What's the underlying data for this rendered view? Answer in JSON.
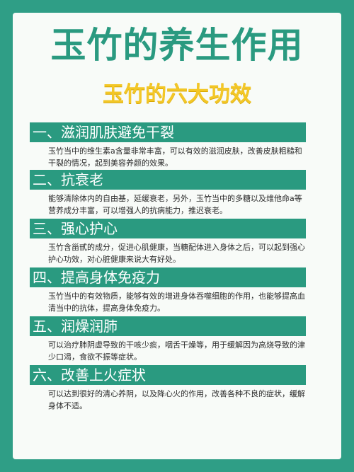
{
  "title": "玉竹的养生作用",
  "subtitle": "玉竹的六大功效",
  "sections": [
    {
      "heading": "一、滋润肌肤避免干裂",
      "text": "玉竹当中的维生素a含量非常丰富，可以有效的滋润皮肤，改善皮肤粗糙和干裂的情况，起到美容养颜的效果。"
    },
    {
      "heading": "二、抗衰老",
      "text": "能够清除体内的自由基，延缓衰老，另外，玉竹当中的多糖以及维他命a等营养成分丰富，可以增强人的抗病能力，推迟衰老。"
    },
    {
      "heading": "三、强心护心",
      "text": "玉竹含甾甙的成分，促进心肌健康，当糖配体进入身体之后，可以起到强心护心功效，对心脏健康来说大有好处。"
    },
    {
      "heading": "四、提高身体免疫力",
      "text": "玉竹当中的有效物质，能够有效的增进身体吞噬细胞的作用，也能够提高血清当中的抗体，提高身体免疫力。"
    },
    {
      "heading": "五、润燥润肺",
      "text": "可以治疗肺阴虚导致的干咳少痰，咽舌干燥等，用于缓解因为高烧导致的津少口渴，食欲不振等症状。"
    },
    {
      "heading": "六、改善上火症状",
      "text": "可以达到很好的清心养阴，以及降心火的作用，改善各种不良的症状，缓解身体不适。"
    }
  ]
}
